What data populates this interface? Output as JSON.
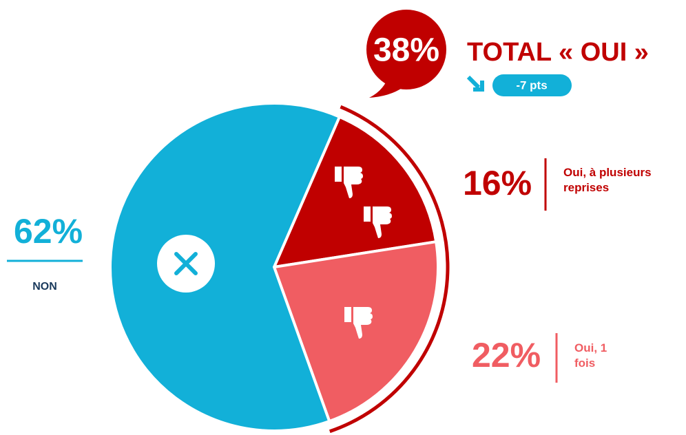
{
  "chart_data": {
    "type": "pie",
    "categories": [
      "NON",
      "Oui, à plusieurs reprises",
      "Oui, 1 fois"
    ],
    "values": [
      62,
      16,
      22
    ],
    "value_labels": [
      "62%",
      "16%",
      "22%"
    ],
    "colors": [
      "#12b0d8",
      "#c00000",
      "#f05d62"
    ],
    "total": {
      "value": 38,
      "label": "38%",
      "title": "TOTAL « OUI »",
      "color": "#c00000"
    },
    "change": {
      "value": -7,
      "label": "-7 pts",
      "color": "#12b0d8"
    }
  }
}
